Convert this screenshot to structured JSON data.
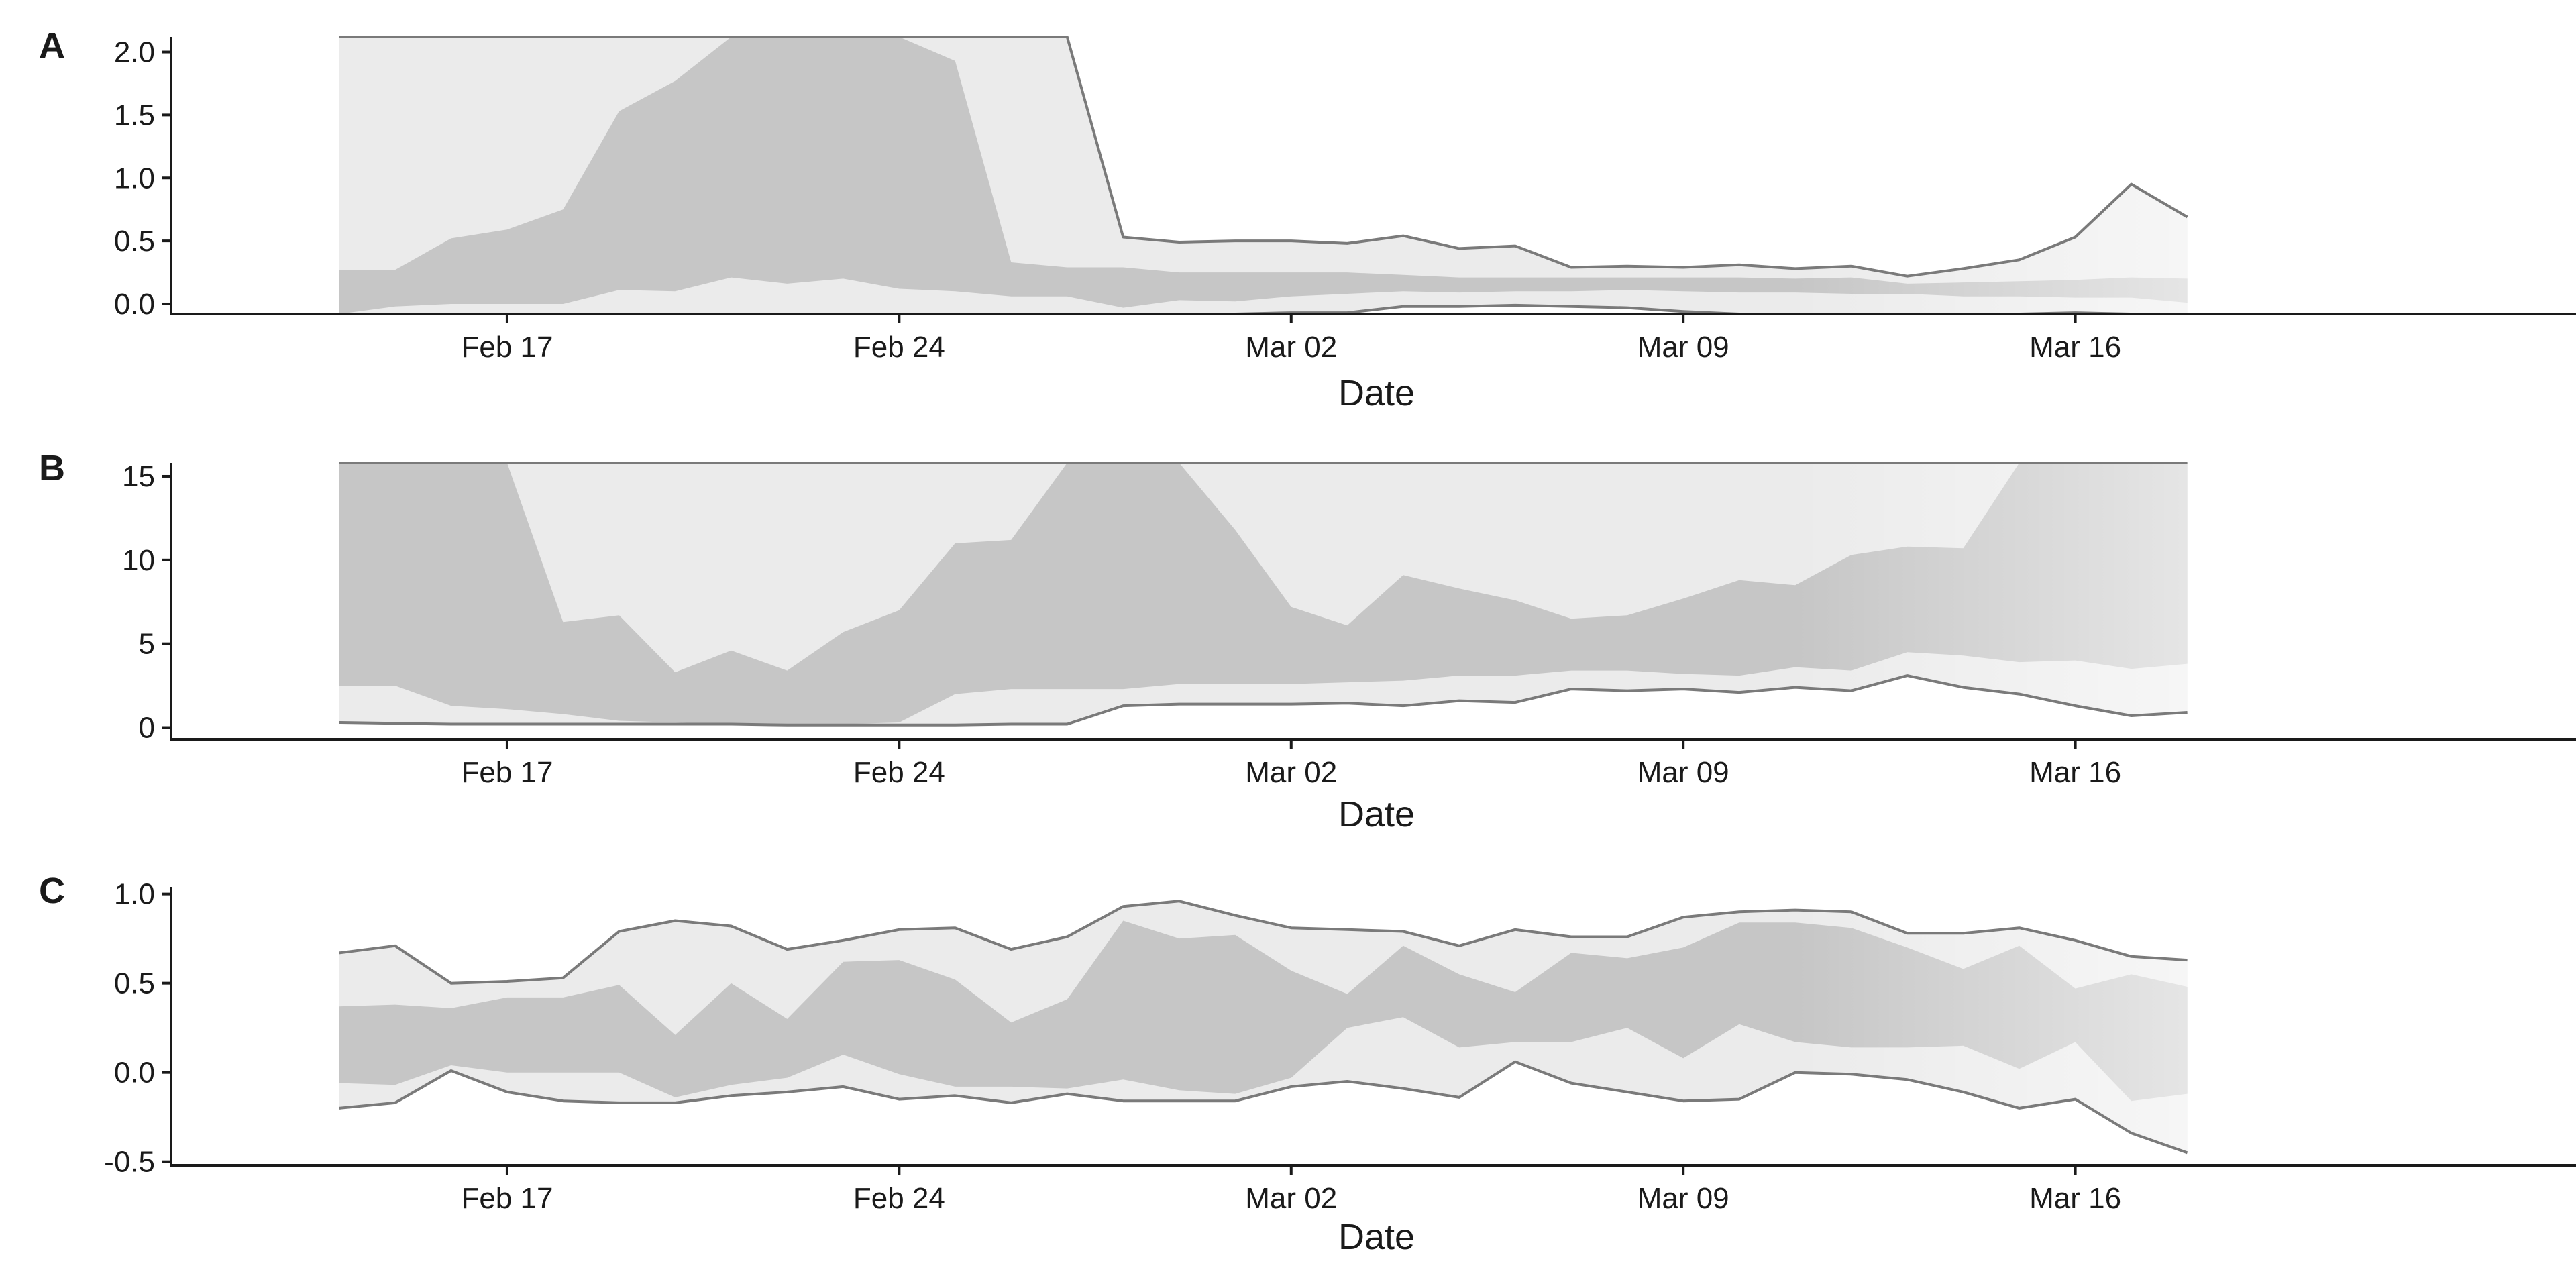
{
  "chart_data": [
    {
      "panel": "A",
      "type": "area",
      "xlabel": "Date",
      "ylabel": "",
      "x_ticks": [
        "Feb 17",
        "Feb 24",
        "Mar 02",
        "Mar 09",
        "Mar 16"
      ],
      "x_tick_dates": [
        "2020-02-17",
        "2020-02-24",
        "2020-03-02",
        "2020-03-09",
        "2020-03-16"
      ],
      "y_ticks": [
        "0.0",
        "0.5",
        "1.0",
        "1.5",
        "2.0"
      ],
      "y_tick_values": [
        0.0,
        0.5,
        1.0,
        1.5,
        2.0
      ],
      "ylim": [
        -0.08,
        2.12
      ],
      "xlim": [
        "2020-02-11",
        "2020-03-25"
      ],
      "dates": [
        "2020-02-14",
        "2020-02-15",
        "2020-02-16",
        "2020-02-17",
        "2020-02-18",
        "2020-02-19",
        "2020-02-20",
        "2020-02-21",
        "2020-02-22",
        "2020-02-23",
        "2020-02-24",
        "2020-02-25",
        "2020-02-26",
        "2020-02-27",
        "2020-02-28",
        "2020-02-29",
        "2020-03-01",
        "2020-03-02",
        "2020-03-03",
        "2020-03-04",
        "2020-03-05",
        "2020-03-06",
        "2020-03-07",
        "2020-03-08",
        "2020-03-09",
        "2020-03-10",
        "2020-03-11",
        "2020-03-12",
        "2020-03-13",
        "2020-03-14",
        "2020-03-15",
        "2020-03-16",
        "2020-03-17",
        "2020-03-18"
      ],
      "outer_upper": [
        2.12,
        2.12,
        2.12,
        2.12,
        2.12,
        2.12,
        2.12,
        2.12,
        2.12,
        2.12,
        2.12,
        2.12,
        2.12,
        2.12,
        0.53,
        0.49,
        0.5,
        0.5,
        0.48,
        0.54,
        0.44,
        0.46,
        0.29,
        0.3,
        0.29,
        0.31,
        0.28,
        0.3,
        0.22,
        0.28,
        0.35,
        0.53,
        0.95,
        0.69
      ],
      "inner_upper": [
        0.27,
        0.27,
        0.52,
        0.59,
        0.75,
        1.53,
        1.77,
        2.12,
        2.12,
        2.12,
        2.12,
        1.93,
        0.33,
        0.29,
        0.29,
        0.25,
        0.25,
        0.25,
        0.25,
        0.23,
        0.21,
        0.21,
        0.21,
        0.21,
        0.21,
        0.21,
        0.2,
        0.21,
        0.16,
        0.17,
        0.18,
        0.19,
        0.21,
        0.2
      ],
      "inner_lower": [
        -0.08,
        -0.02,
        0.0,
        0.0,
        0.0,
        0.11,
        0.1,
        0.21,
        0.16,
        0.2,
        0.12,
        0.1,
        0.06,
        0.06,
        -0.03,
        0.03,
        0.02,
        0.06,
        0.08,
        0.1,
        0.09,
        0.1,
        0.1,
        0.11,
        0.1,
        0.09,
        0.09,
        0.08,
        0.08,
        0.06,
        0.06,
        0.05,
        0.05,
        0.01
      ],
      "outer_lower": [
        -0.08,
        -0.08,
        -0.08,
        -0.08,
        -0.08,
        -0.08,
        -0.08,
        -0.08,
        -0.08,
        -0.08,
        -0.08,
        -0.08,
        -0.08,
        -0.08,
        -0.08,
        -0.08,
        -0.08,
        -0.07,
        -0.07,
        -0.02,
        -0.02,
        -0.01,
        -0.02,
        -0.03,
        -0.06,
        -0.08,
        -0.08,
        -0.08,
        -0.08,
        -0.08,
        -0.08,
        -0.07,
        -0.08,
        -0.08
      ]
    },
    {
      "panel": "B",
      "type": "area",
      "xlabel": "Date",
      "ylabel": "",
      "x_ticks": [
        "Feb 17",
        "Feb 24",
        "Mar 02",
        "Mar 09",
        "Mar 16"
      ],
      "x_tick_dates": [
        "2020-02-17",
        "2020-02-24",
        "2020-03-02",
        "2020-03-09",
        "2020-03-16"
      ],
      "y_ticks": [
        "0",
        "5",
        "10",
        "15"
      ],
      "y_tick_values": [
        0,
        5,
        10,
        15
      ],
      "ylim": [
        -0.7,
        15.8
      ],
      "xlim": [
        "2020-02-11",
        "2020-03-25"
      ],
      "dates": [
        "2020-02-14",
        "2020-02-15",
        "2020-02-16",
        "2020-02-17",
        "2020-02-18",
        "2020-02-19",
        "2020-02-20",
        "2020-02-21",
        "2020-02-22",
        "2020-02-23",
        "2020-02-24",
        "2020-02-25",
        "2020-02-26",
        "2020-02-27",
        "2020-02-28",
        "2020-02-29",
        "2020-03-01",
        "2020-03-02",
        "2020-03-03",
        "2020-03-04",
        "2020-03-05",
        "2020-03-06",
        "2020-03-07",
        "2020-03-08",
        "2020-03-09",
        "2020-03-10",
        "2020-03-11",
        "2020-03-12",
        "2020-03-13",
        "2020-03-14",
        "2020-03-15",
        "2020-03-16",
        "2020-03-17",
        "2020-03-18"
      ],
      "outer_upper": [
        15.8,
        15.8,
        15.8,
        15.8,
        15.8,
        15.8,
        15.8,
        15.8,
        15.8,
        15.8,
        15.8,
        15.8,
        15.8,
        15.8,
        15.8,
        15.8,
        15.8,
        15.8,
        15.8,
        15.8,
        15.8,
        15.8,
        15.8,
        15.8,
        15.8,
        15.8,
        15.8,
        15.8,
        15.8,
        15.8,
        15.8,
        15.8,
        15.8,
        15.8
      ],
      "inner_upper": [
        15.8,
        15.8,
        15.8,
        15.8,
        6.3,
        6.7,
        3.3,
        4.6,
        3.4,
        5.7,
        7.0,
        11.0,
        11.2,
        15.8,
        15.8,
        15.8,
        11.8,
        7.2,
        6.1,
        9.1,
        8.3,
        7.6,
        6.5,
        6.7,
        7.7,
        8.8,
        8.5,
        10.3,
        10.8,
        10.7,
        15.8,
        15.8,
        15.8,
        15.8
      ],
      "inner_lower": [
        2.5,
        2.5,
        1.3,
        1.1,
        0.8,
        0.4,
        0.3,
        0.2,
        0.2,
        0.2,
        0.3,
        2.0,
        2.3,
        2.3,
        2.3,
        2.6,
        2.6,
        2.6,
        2.7,
        2.8,
        3.1,
        3.1,
        3.4,
        3.4,
        3.2,
        3.1,
        3.6,
        3.4,
        4.5,
        4.3,
        3.9,
        4.0,
        3.5,
        3.8
      ],
      "outer_lower": [
        0.3,
        0.25,
        0.2,
        0.2,
        0.2,
        0.2,
        0.2,
        0.2,
        0.15,
        0.15,
        0.15,
        0.15,
        0.2,
        0.2,
        1.3,
        1.4,
        1.4,
        1.4,
        1.45,
        1.3,
        1.6,
        1.5,
        2.3,
        2.2,
        2.3,
        2.1,
        2.4,
        2.2,
        3.1,
        2.4,
        2.0,
        1.3,
        0.7,
        0.9
      ]
    },
    {
      "panel": "C",
      "type": "area",
      "xlabel": "Date",
      "ylabel": "",
      "x_ticks": [
        "Feb 17",
        "Feb 24",
        "Mar 02",
        "Mar 09",
        "Mar 16"
      ],
      "x_tick_dates": [
        "2020-02-17",
        "2020-02-24",
        "2020-03-02",
        "2020-03-09",
        "2020-03-16"
      ],
      "y_ticks": [
        "1.0",
        "0.5",
        "0.0",
        "-0.5"
      ],
      "y_tick_values": [
        1.0,
        0.5,
        0.0,
        -0.5
      ],
      "ylim": [
        -0.52,
        1.04
      ],
      "xlim": [
        "2020-02-11",
        "2020-03-25"
      ],
      "dates": [
        "2020-02-14",
        "2020-02-15",
        "2020-02-16",
        "2020-02-17",
        "2020-02-18",
        "2020-02-19",
        "2020-02-20",
        "2020-02-21",
        "2020-02-22",
        "2020-02-23",
        "2020-02-24",
        "2020-02-25",
        "2020-02-26",
        "2020-02-27",
        "2020-02-28",
        "2020-02-29",
        "2020-03-01",
        "2020-03-02",
        "2020-03-03",
        "2020-03-04",
        "2020-03-05",
        "2020-03-06",
        "2020-03-07",
        "2020-03-08",
        "2020-03-09",
        "2020-03-10",
        "2020-03-11",
        "2020-03-12",
        "2020-03-13",
        "2020-03-14",
        "2020-03-15",
        "2020-03-16",
        "2020-03-17",
        "2020-03-18"
      ],
      "outer_upper": [
        0.67,
        0.71,
        0.5,
        0.51,
        0.53,
        0.79,
        0.85,
        0.82,
        0.69,
        0.74,
        0.8,
        0.81,
        0.69,
        0.76,
        0.93,
        0.96,
        0.88,
        0.81,
        0.8,
        0.79,
        0.71,
        0.8,
        0.76,
        0.76,
        0.87,
        0.9,
        0.91,
        0.9,
        0.78,
        0.78,
        0.81,
        0.74,
        0.65,
        0.63
      ],
      "inner_upper": [
        0.37,
        0.38,
        0.36,
        0.42,
        0.42,
        0.49,
        0.21,
        0.5,
        0.3,
        0.62,
        0.63,
        0.52,
        0.28,
        0.41,
        0.85,
        0.75,
        0.77,
        0.57,
        0.44,
        0.71,
        0.55,
        0.45,
        0.67,
        0.64,
        0.7,
        0.84,
        0.84,
        0.81,
        0.7,
        0.58,
        0.71,
        0.47,
        0.55,
        0.48
      ],
      "inner_lower": [
        -0.06,
        -0.07,
        0.04,
        0.0,
        0.0,
        0.0,
        -0.14,
        -0.07,
        -0.03,
        0.1,
        -0.01,
        -0.08,
        -0.08,
        -0.09,
        -0.04,
        -0.1,
        -0.12,
        -0.03,
        0.25,
        0.31,
        0.14,
        0.17,
        0.17,
        0.25,
        0.08,
        0.27,
        0.17,
        0.14,
        0.14,
        0.15,
        0.02,
        0.17,
        -0.16,
        -0.12
      ],
      "outer_lower": [
        -0.2,
        -0.17,
        0.01,
        -0.11,
        -0.16,
        -0.17,
        -0.17,
        -0.13,
        -0.11,
        -0.08,
        -0.15,
        -0.13,
        -0.17,
        -0.12,
        -0.16,
        -0.16,
        -0.16,
        -0.08,
        -0.05,
        -0.09,
        -0.14,
        0.06,
        -0.06,
        -0.11,
        -0.16,
        -0.15,
        0.0,
        -0.01,
        -0.04,
        -0.11,
        -0.2,
        -0.15,
        -0.34,
        -0.45
      ]
    }
  ],
  "colors": {
    "outer_band": "#ebebeb",
    "inner_band": "#c6c6c6",
    "line": "#7a7a7a",
    "axis": "#1a1a1a"
  }
}
